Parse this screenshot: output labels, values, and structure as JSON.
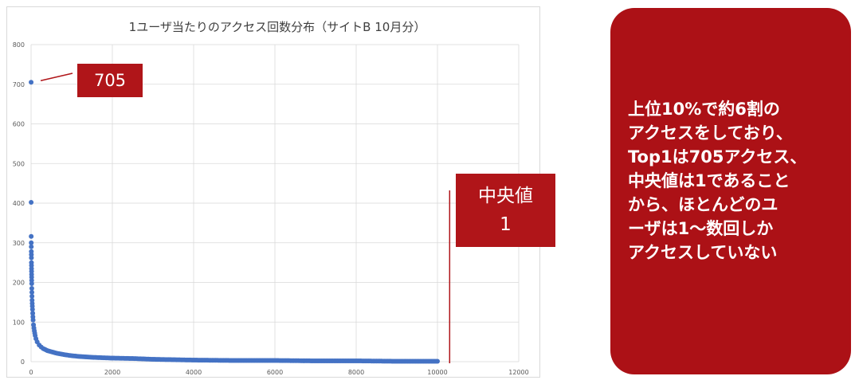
{
  "chart_data": {
    "type": "scatter",
    "title": "1ユーザ当たりのアクセス回数分布（サイトB 10月分）",
    "xlim": [
      0,
      12000
    ],
    "ylim": [
      0,
      800
    ],
    "x_ticks": [
      "0",
      "2000",
      "4000",
      "6000",
      "8000",
      "10000",
      "12000"
    ],
    "y_ticks": [
      "0",
      "100",
      "200",
      "300",
      "400",
      "500",
      "600",
      "700",
      "800"
    ],
    "grid": true,
    "marker_color": "#4472c4",
    "series": [
      {
        "x": [
          1,
          2,
          3,
          4,
          5,
          6,
          7,
          8,
          9,
          10,
          11,
          12,
          13,
          14,
          15,
          16,
          18,
          20,
          22,
          25,
          28,
          31,
          35,
          40,
          45,
          50,
          60,
          70,
          80,
          90,
          100,
          120,
          150,
          200,
          250,
          300,
          400,
          500,
          600,
          800,
          1000,
          1200,
          1500,
          2000,
          2500,
          3000,
          4000,
          5000,
          6000,
          7000,
          8000,
          9000,
          10000
        ],
        "y": [
          705,
          402,
          316,
          300,
          290,
          278,
          270,
          262,
          250,
          243,
          235,
          228,
          220,
          213,
          205,
          197,
          185,
          175,
          165,
          155,
          147,
          140,
          132,
          122,
          113,
          105,
          93,
          85,
          78,
          72,
          66,
          58,
          50,
          42,
          37,
          33,
          28,
          25,
          22,
          18,
          15,
          13,
          11,
          9,
          8,
          6,
          4,
          3,
          3,
          2,
          2,
          1,
          1
        ]
      }
    ],
    "annotations": [
      {
        "label": "705",
        "x": 1,
        "y": 705
      },
      {
        "label": "中央値\n1",
        "x": 10300
      }
    ]
  },
  "callouts": {
    "max_label": "705",
    "median_label": "中央値",
    "median_value": "1"
  },
  "summary": {
    "lines": [
      "上位10%で約6割の",
      "アクセスをしており、",
      "Top1は705アクセス、",
      "中央値は1であること",
      "から、ほとんどのユ",
      "ーザは1～数回しか",
      "アクセスしていない"
    ]
  },
  "colors": {
    "accent_red": "#b01519",
    "marker_blue": "#4472c4",
    "grid": "#d9d9d9"
  }
}
